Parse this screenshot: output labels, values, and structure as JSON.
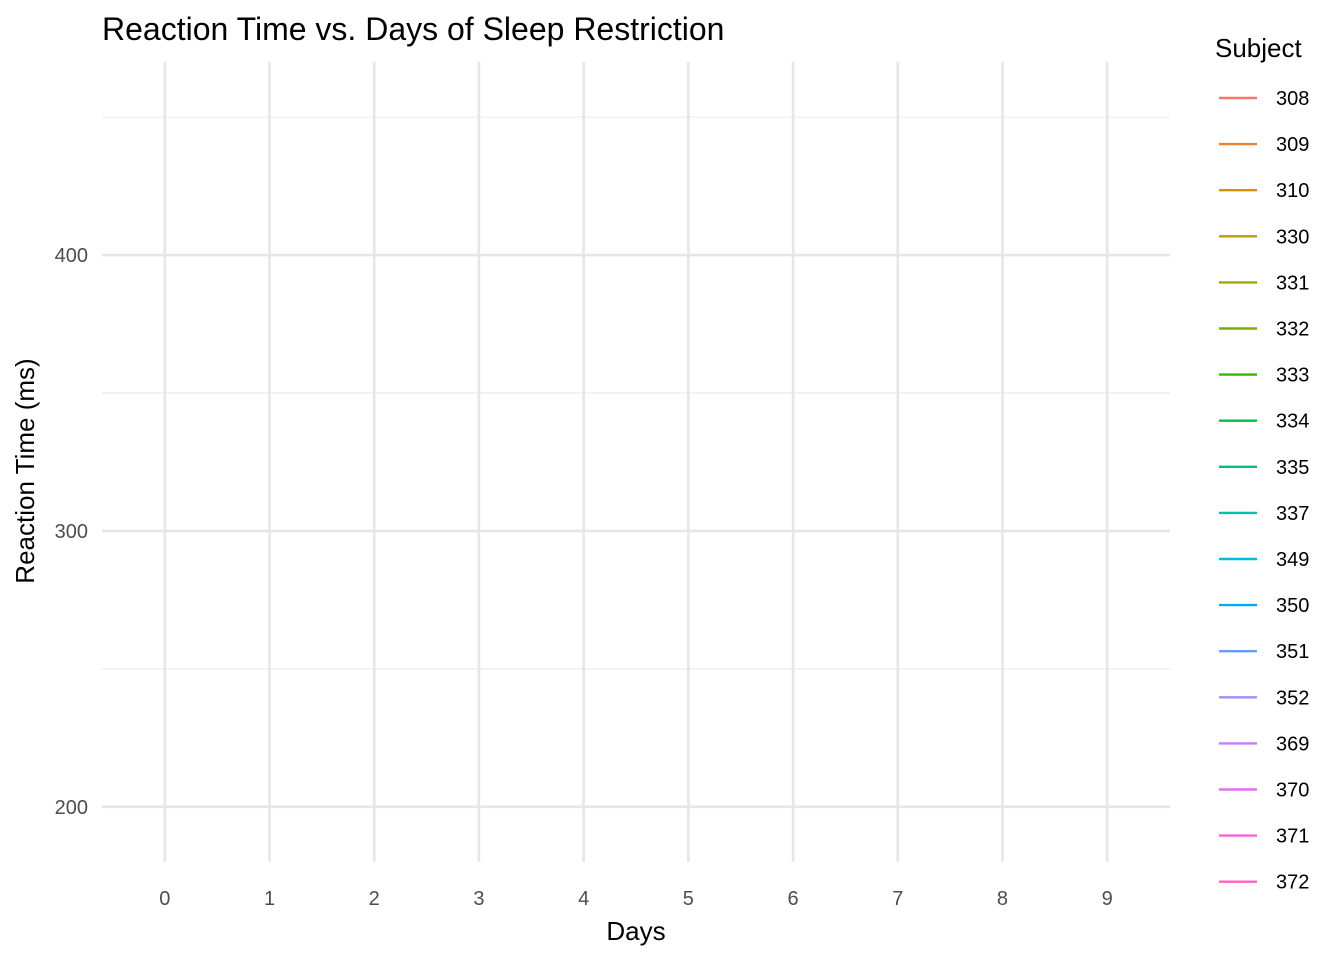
{
  "chart_data": {
    "type": "line",
    "title": "Reaction Time vs. Days of Sleep Restriction",
    "xlabel": "Days",
    "ylabel": "Reaction Time (ms)",
    "x_ticks": [
      "0",
      "1",
      "2",
      "3",
      "4",
      "5",
      "6",
      "7",
      "8",
      "9"
    ],
    "y_ticks": [
      "200",
      "300",
      "400"
    ],
    "xlim": [
      -0.6,
      9.6
    ],
    "ylim": [
      180,
      470
    ],
    "y_major": [
      200,
      300,
      400
    ],
    "y_minor": [
      250,
      350,
      450
    ],
    "grid": true,
    "legend": {
      "title": "Subject",
      "placement": "right",
      "entries": [
        {
          "label": "308",
          "color": "#F8766D"
        },
        {
          "label": "309",
          "color": "#EA8331"
        },
        {
          "label": "310",
          "color": "#D89000"
        },
        {
          "label": "330",
          "color": "#C09B00"
        },
        {
          "label": "331",
          "color": "#A3A500"
        },
        {
          "label": "332",
          "color": "#7CAE00"
        },
        {
          "label": "333",
          "color": "#39B600"
        },
        {
          "label": "334",
          "color": "#00BB4E"
        },
        {
          "label": "335",
          "color": "#00BF7D"
        },
        {
          "label": "337",
          "color": "#00C1A3"
        },
        {
          "label": "349",
          "color": "#00BAE0"
        },
        {
          "label": "350",
          "color": "#00A9FF"
        },
        {
          "label": "351",
          "color": "#619CFF"
        },
        {
          "label": "352",
          "color": "#9F8CFF"
        },
        {
          "label": "369",
          "color": "#C77CFF"
        },
        {
          "label": "370",
          "color": "#E76BF3"
        },
        {
          "label": "371",
          "color": "#FA62DB"
        },
        {
          "label": "372",
          "color": "#FF62BC"
        }
      ]
    },
    "series": []
  }
}
